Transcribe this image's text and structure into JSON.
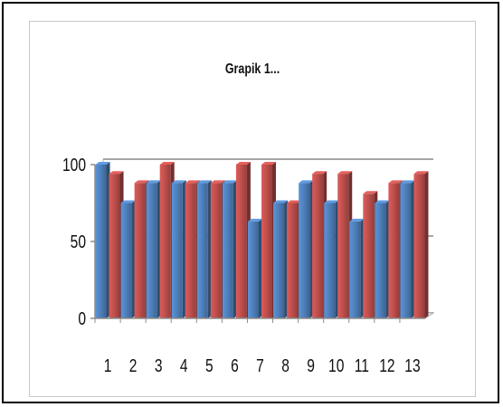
{
  "chart_data": {
    "type": "bar",
    "title": "Grapik 1...",
    "categories": [
      "1",
      "2",
      "3",
      "4",
      "5",
      "6",
      "7",
      "8",
      "9",
      "10",
      "11",
      "12",
      "13"
    ],
    "series": [
      {
        "values": [
          100,
          75,
          88,
          88,
          88,
          88,
          63,
          75,
          88,
          75,
          63,
          75,
          88
        ],
        "color": "#4f81bd"
      },
      {
        "values": [
          94,
          88,
          100,
          88,
          88,
          100,
          100,
          75,
          94,
          94,
          81,
          88,
          94
        ],
        "color": "#c0504d"
      }
    ],
    "yticks": [
      "0",
      "50",
      "100"
    ],
    "ylim": [
      0,
      100
    ],
    "grid": true,
    "style": "3d-clustered-column"
  }
}
